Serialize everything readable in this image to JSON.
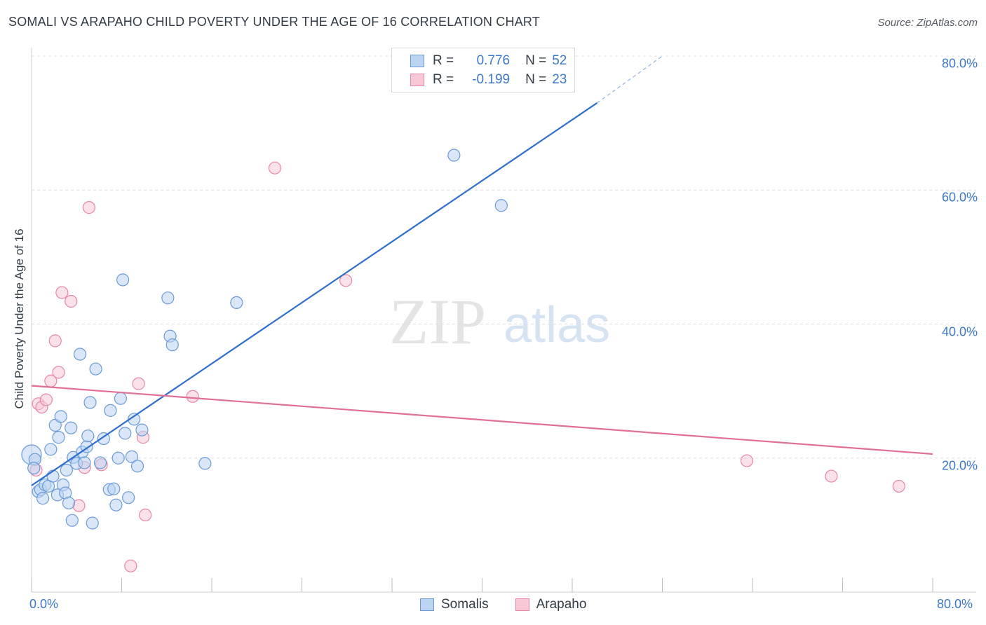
{
  "title": "SOMALI VS ARAPAHO CHILD POVERTY UNDER THE AGE OF 16 CORRELATION CHART",
  "source": "Source: ZipAtlas.com",
  "watermark": {
    "zip": "ZIP",
    "atlas": "atlas"
  },
  "legend": {
    "r_label": "R =",
    "n_label": "N =",
    "rows": [
      {
        "name": "Somalis",
        "r": "0.776",
        "n": "52"
      },
      {
        "name": "Arapaho",
        "r": "-0.199",
        "n": "23"
      }
    ]
  },
  "chart_data": {
    "type": "scatter",
    "title": "SOMALI VS ARAPAHO CHILD POVERTY UNDER THE AGE OF 16 CORRELATION CHART",
    "xlabel": "",
    "ylabel": "Child Poverty Under the Age of 16",
    "xlim": [
      0,
      80
    ],
    "ylim": [
      0,
      80
    ],
    "x_tick_labels": [
      "0.0%",
      "80.0%"
    ],
    "y_tick_labels": [
      {
        "value": 20,
        "label": "20.0%"
      },
      {
        "value": 40,
        "label": "40.0%"
      },
      {
        "value": 60,
        "label": "60.0%"
      },
      {
        "value": 80,
        "label": "80.0%"
      }
    ],
    "grid": true,
    "legend_position": "top-center",
    "colors": {
      "Somalis": "#6a9bd8",
      "Arapaho": "#e886a5",
      "somalis_line": "#2f6fce",
      "arapaho_line": "#e0709a",
      "axis_text": "#3b78c9"
    },
    "series": [
      {
        "name": "Somalis",
        "points": [
          [
            0.0,
            20.5
          ],
          [
            0.3,
            19.8
          ],
          [
            0.2,
            18.5
          ],
          [
            0.6,
            15.0
          ],
          [
            0.8,
            15.3
          ],
          [
            1.0,
            14.0
          ],
          [
            1.2,
            16.0
          ],
          [
            1.5,
            15.8
          ],
          [
            1.7,
            21.3
          ],
          [
            1.9,
            17.3
          ],
          [
            2.1,
            24.9
          ],
          [
            2.3,
            14.5
          ],
          [
            2.4,
            23.1
          ],
          [
            2.6,
            26.2
          ],
          [
            2.8,
            16.0
          ],
          [
            3.0,
            14.8
          ],
          [
            3.1,
            18.2
          ],
          [
            3.3,
            13.3
          ],
          [
            3.5,
            24.5
          ],
          [
            3.6,
            10.7
          ],
          [
            3.7,
            20.1
          ],
          [
            4.0,
            19.2
          ],
          [
            4.3,
            35.5
          ],
          [
            4.5,
            20.9
          ],
          [
            4.7,
            19.3
          ],
          [
            4.9,
            21.7
          ],
          [
            5.0,
            23.3
          ],
          [
            5.2,
            28.3
          ],
          [
            5.4,
            10.3
          ],
          [
            5.7,
            33.3
          ],
          [
            6.1,
            19.3
          ],
          [
            6.4,
            22.9
          ],
          [
            6.9,
            15.3
          ],
          [
            7.0,
            27.1
          ],
          [
            7.3,
            15.4
          ],
          [
            7.5,
            13.0
          ],
          [
            7.7,
            20.0
          ],
          [
            7.9,
            28.9
          ],
          [
            8.1,
            46.6
          ],
          [
            8.3,
            23.7
          ],
          [
            8.6,
            14.1
          ],
          [
            8.9,
            20.2
          ],
          [
            9.1,
            25.8
          ],
          [
            9.4,
            18.8
          ],
          [
            9.8,
            24.2
          ],
          [
            12.1,
            43.9
          ],
          [
            12.3,
            38.2
          ],
          [
            12.5,
            36.9
          ],
          [
            15.4,
            19.2
          ],
          [
            18.2,
            43.2
          ],
          [
            37.5,
            65.2
          ],
          [
            41.7,
            57.7
          ]
        ]
      },
      {
        "name": "Arapaho",
        "points": [
          [
            0.4,
            18.2
          ],
          [
            0.6,
            28.1
          ],
          [
            0.9,
            27.6
          ],
          [
            1.3,
            28.7
          ],
          [
            1.7,
            31.5
          ],
          [
            2.1,
            37.5
          ],
          [
            2.4,
            32.8
          ],
          [
            2.7,
            44.7
          ],
          [
            3.5,
            43.4
          ],
          [
            4.2,
            12.9
          ],
          [
            4.7,
            18.6
          ],
          [
            5.1,
            57.4
          ],
          [
            6.2,
            19.0
          ],
          [
            8.8,
            3.9
          ],
          [
            9.5,
            31.1
          ],
          [
            9.9,
            23.1
          ],
          [
            10.1,
            11.5
          ],
          [
            14.3,
            29.2
          ],
          [
            21.6,
            63.3
          ],
          [
            27.9,
            46.5
          ],
          [
            63.5,
            19.6
          ],
          [
            71.0,
            17.3
          ],
          [
            77.0,
            15.8
          ]
        ]
      }
    ],
    "trend_lines": [
      {
        "series": "Somalis",
        "x": [
          0,
          50.2
        ],
        "y": [
          15.9,
          73.0
        ],
        "dashed_extension": {
          "x": [
            50.2,
            56.0
          ],
          "y": [
            73.0,
            80.0
          ]
        }
      },
      {
        "series": "Arapaho",
        "x": [
          0,
          80
        ],
        "y": [
          30.8,
          20.6
        ]
      }
    ]
  },
  "bottom_legend": [
    "Somalis",
    "Arapaho"
  ]
}
